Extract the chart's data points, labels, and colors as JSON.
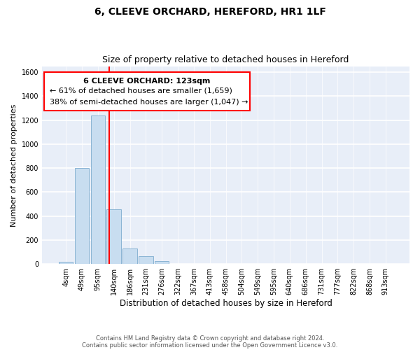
{
  "title": "6, CLEEVE ORCHARD, HEREFORD, HR1 1LF",
  "subtitle": "Size of property relative to detached houses in Hereford",
  "xlabel": "Distribution of detached houses by size in Hereford",
  "ylabel": "Number of detached properties",
  "bar_color": "#c8ddf0",
  "bar_edge_color": "#8ab4d4",
  "background_color": "#e8eef8",
  "tick_labels": [
    "4sqm",
    "49sqm",
    "95sqm",
    "140sqm",
    "186sqm",
    "231sqm",
    "276sqm",
    "322sqm",
    "367sqm",
    "413sqm",
    "458sqm",
    "504sqm",
    "549sqm",
    "595sqm",
    "640sqm",
    "686sqm",
    "731sqm",
    "777sqm",
    "822sqm",
    "868sqm",
    "913sqm"
  ],
  "bar_heights": [
    20,
    800,
    1240,
    455,
    128,
    65,
    22,
    0,
    0,
    0,
    0,
    0,
    0,
    0,
    0,
    0,
    0,
    0,
    0,
    0,
    0
  ],
  "ylim": [
    0,
    1650
  ],
  "yticks": [
    0,
    200,
    400,
    600,
    800,
    1000,
    1200,
    1400,
    1600
  ],
  "red_line_x": 2.72,
  "annotation_title": "6 CLEEVE ORCHARD: 123sqm",
  "annotation_line1": "← 61% of detached houses are smaller (1,659)",
  "annotation_line2": "38% of semi-detached houses are larger (1,047) →",
  "footnote1": "Contains HM Land Registry data © Crown copyright and database right 2024.",
  "footnote2": "Contains public sector information licensed under the Open Government Licence v3.0."
}
